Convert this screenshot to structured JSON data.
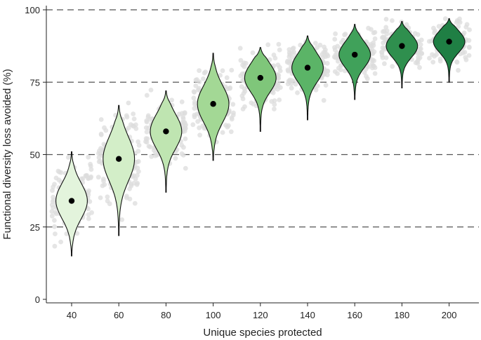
{
  "chart_data": {
    "type": "violin",
    "xlabel": "Unique species protected",
    "ylabel": "Functional diversity loss avoided (%)",
    "categories": [
      "40",
      "60",
      "80",
      "100",
      "120",
      "140",
      "160",
      "180",
      "200"
    ],
    "medians": [
      34,
      48.5,
      58,
      67.5,
      76.5,
      80,
      84.5,
      87.5,
      89
    ],
    "ranges": [
      [
        15,
        51
      ],
      [
        22,
        67
      ],
      [
        37,
        72
      ],
      [
        48,
        85
      ],
      [
        58,
        87
      ],
      [
        62,
        91
      ],
      [
        69,
        95
      ],
      [
        73,
        96
      ],
      [
        75,
        97
      ]
    ],
    "colors": [
      "#e3f4dc",
      "#d3eec8",
      "#bfe5b1",
      "#a3d895",
      "#7fc67a",
      "#5bb467",
      "#40a15a",
      "#2f8f4e",
      "#1f7f44"
    ],
    "yticks": [
      0,
      25,
      50,
      75,
      100
    ],
    "ylim": [
      0,
      100
    ],
    "reference_lines": [
      25,
      50,
      75,
      100
    ]
  }
}
